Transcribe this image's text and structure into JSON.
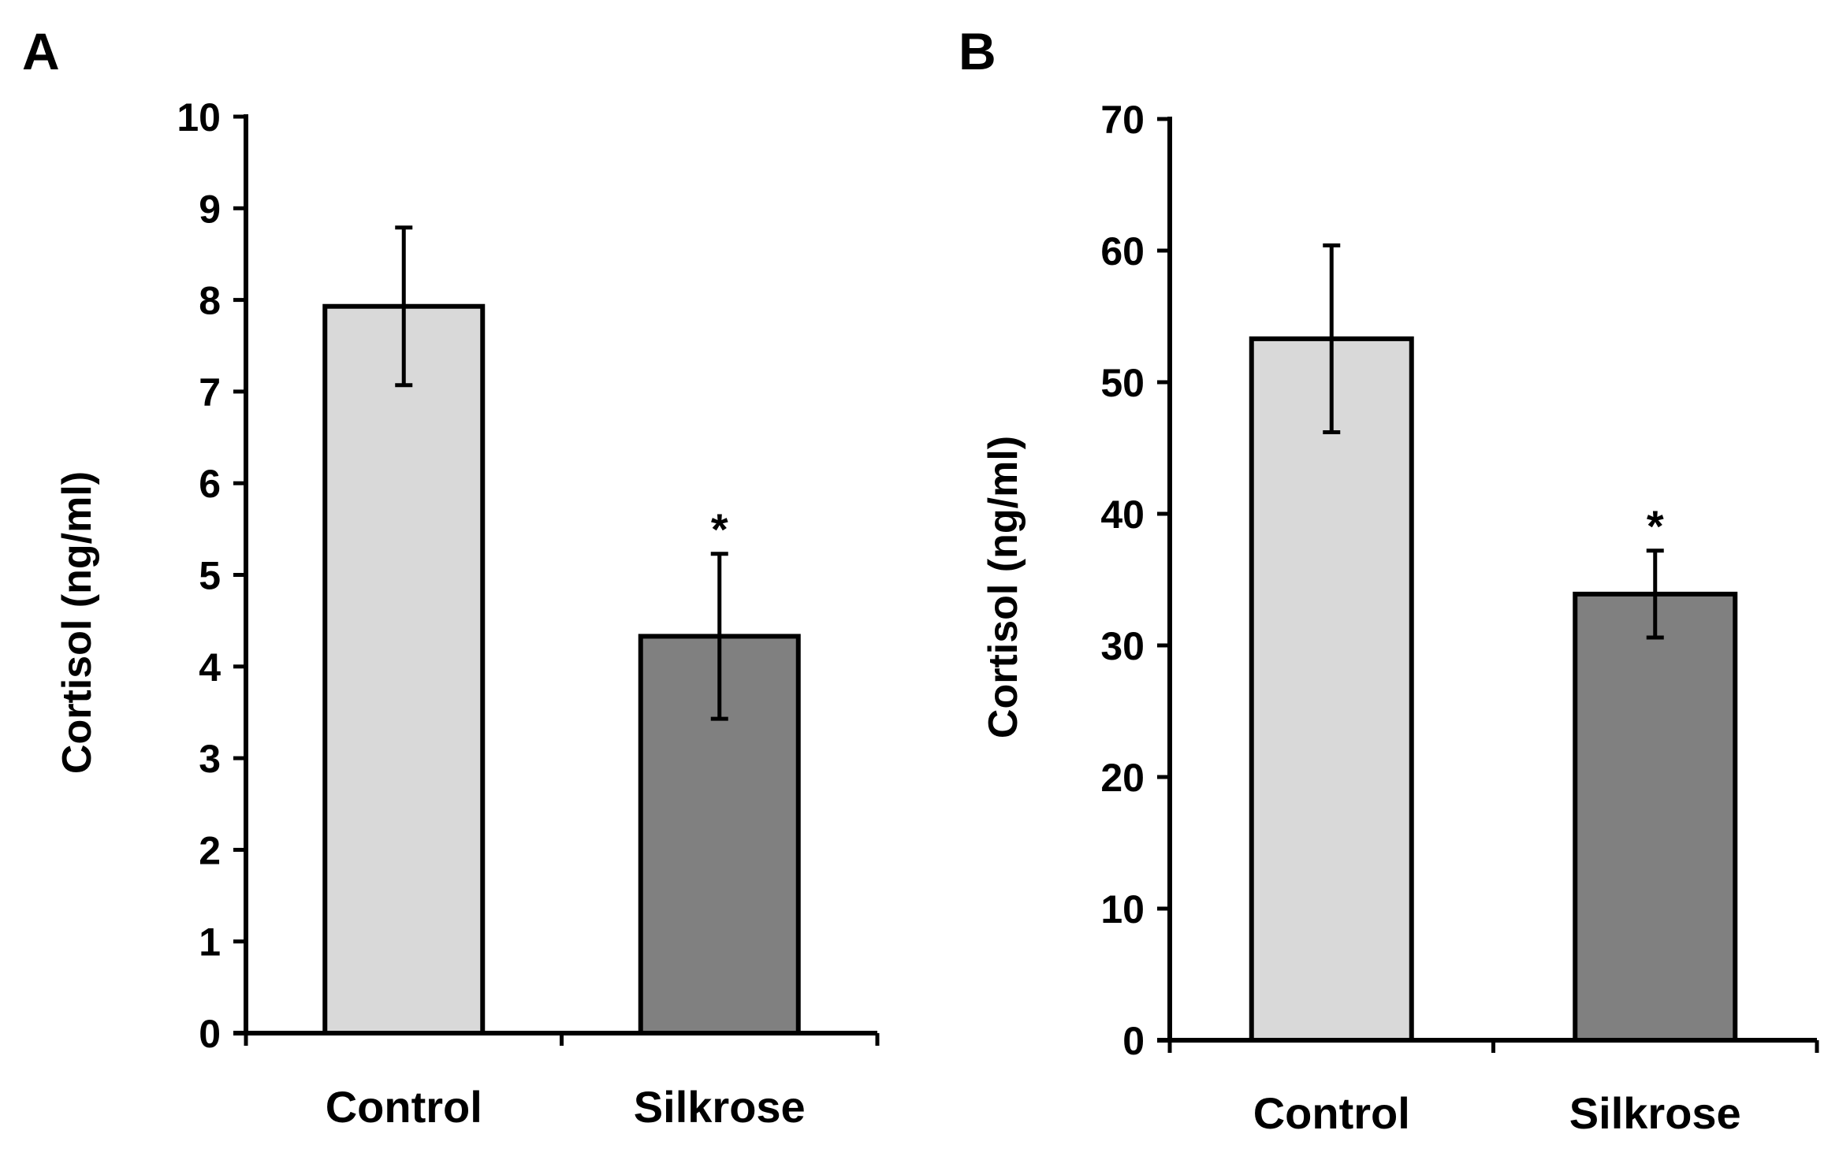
{
  "chart_data": [
    {
      "type": "bar",
      "panel_label": "A",
      "categories": [
        "Control",
        "Silkrose"
      ],
      "values": [
        7.93,
        4.33
      ],
      "error": [
        0.86,
        0.9
      ],
      "significance": [
        "",
        "*"
      ],
      "colors": [
        "#d9d9d9",
        "#808080"
      ],
      "title": "",
      "xlabel": "",
      "ylabel": "Cortisol  (ng/ml)",
      "ylim": [
        0,
        10
      ],
      "yticks": [
        0,
        1,
        2,
        3,
        4,
        5,
        6,
        7,
        8,
        9,
        10
      ],
      "grid": false
    },
    {
      "type": "bar",
      "panel_label": "B",
      "categories": [
        "Control",
        "Silkrose"
      ],
      "values": [
        53.3,
        33.9
      ],
      "error": [
        7.1,
        3.3
      ],
      "significance": [
        "",
        "*"
      ],
      "colors": [
        "#d9d9d9",
        "#808080"
      ],
      "title": "",
      "xlabel": "",
      "ylabel": "Cortisol  (ng/ml)",
      "ylim": [
        0,
        70
      ],
      "yticks": [
        0,
        10,
        20,
        30,
        40,
        50,
        60,
        70
      ],
      "grid": false
    }
  ]
}
